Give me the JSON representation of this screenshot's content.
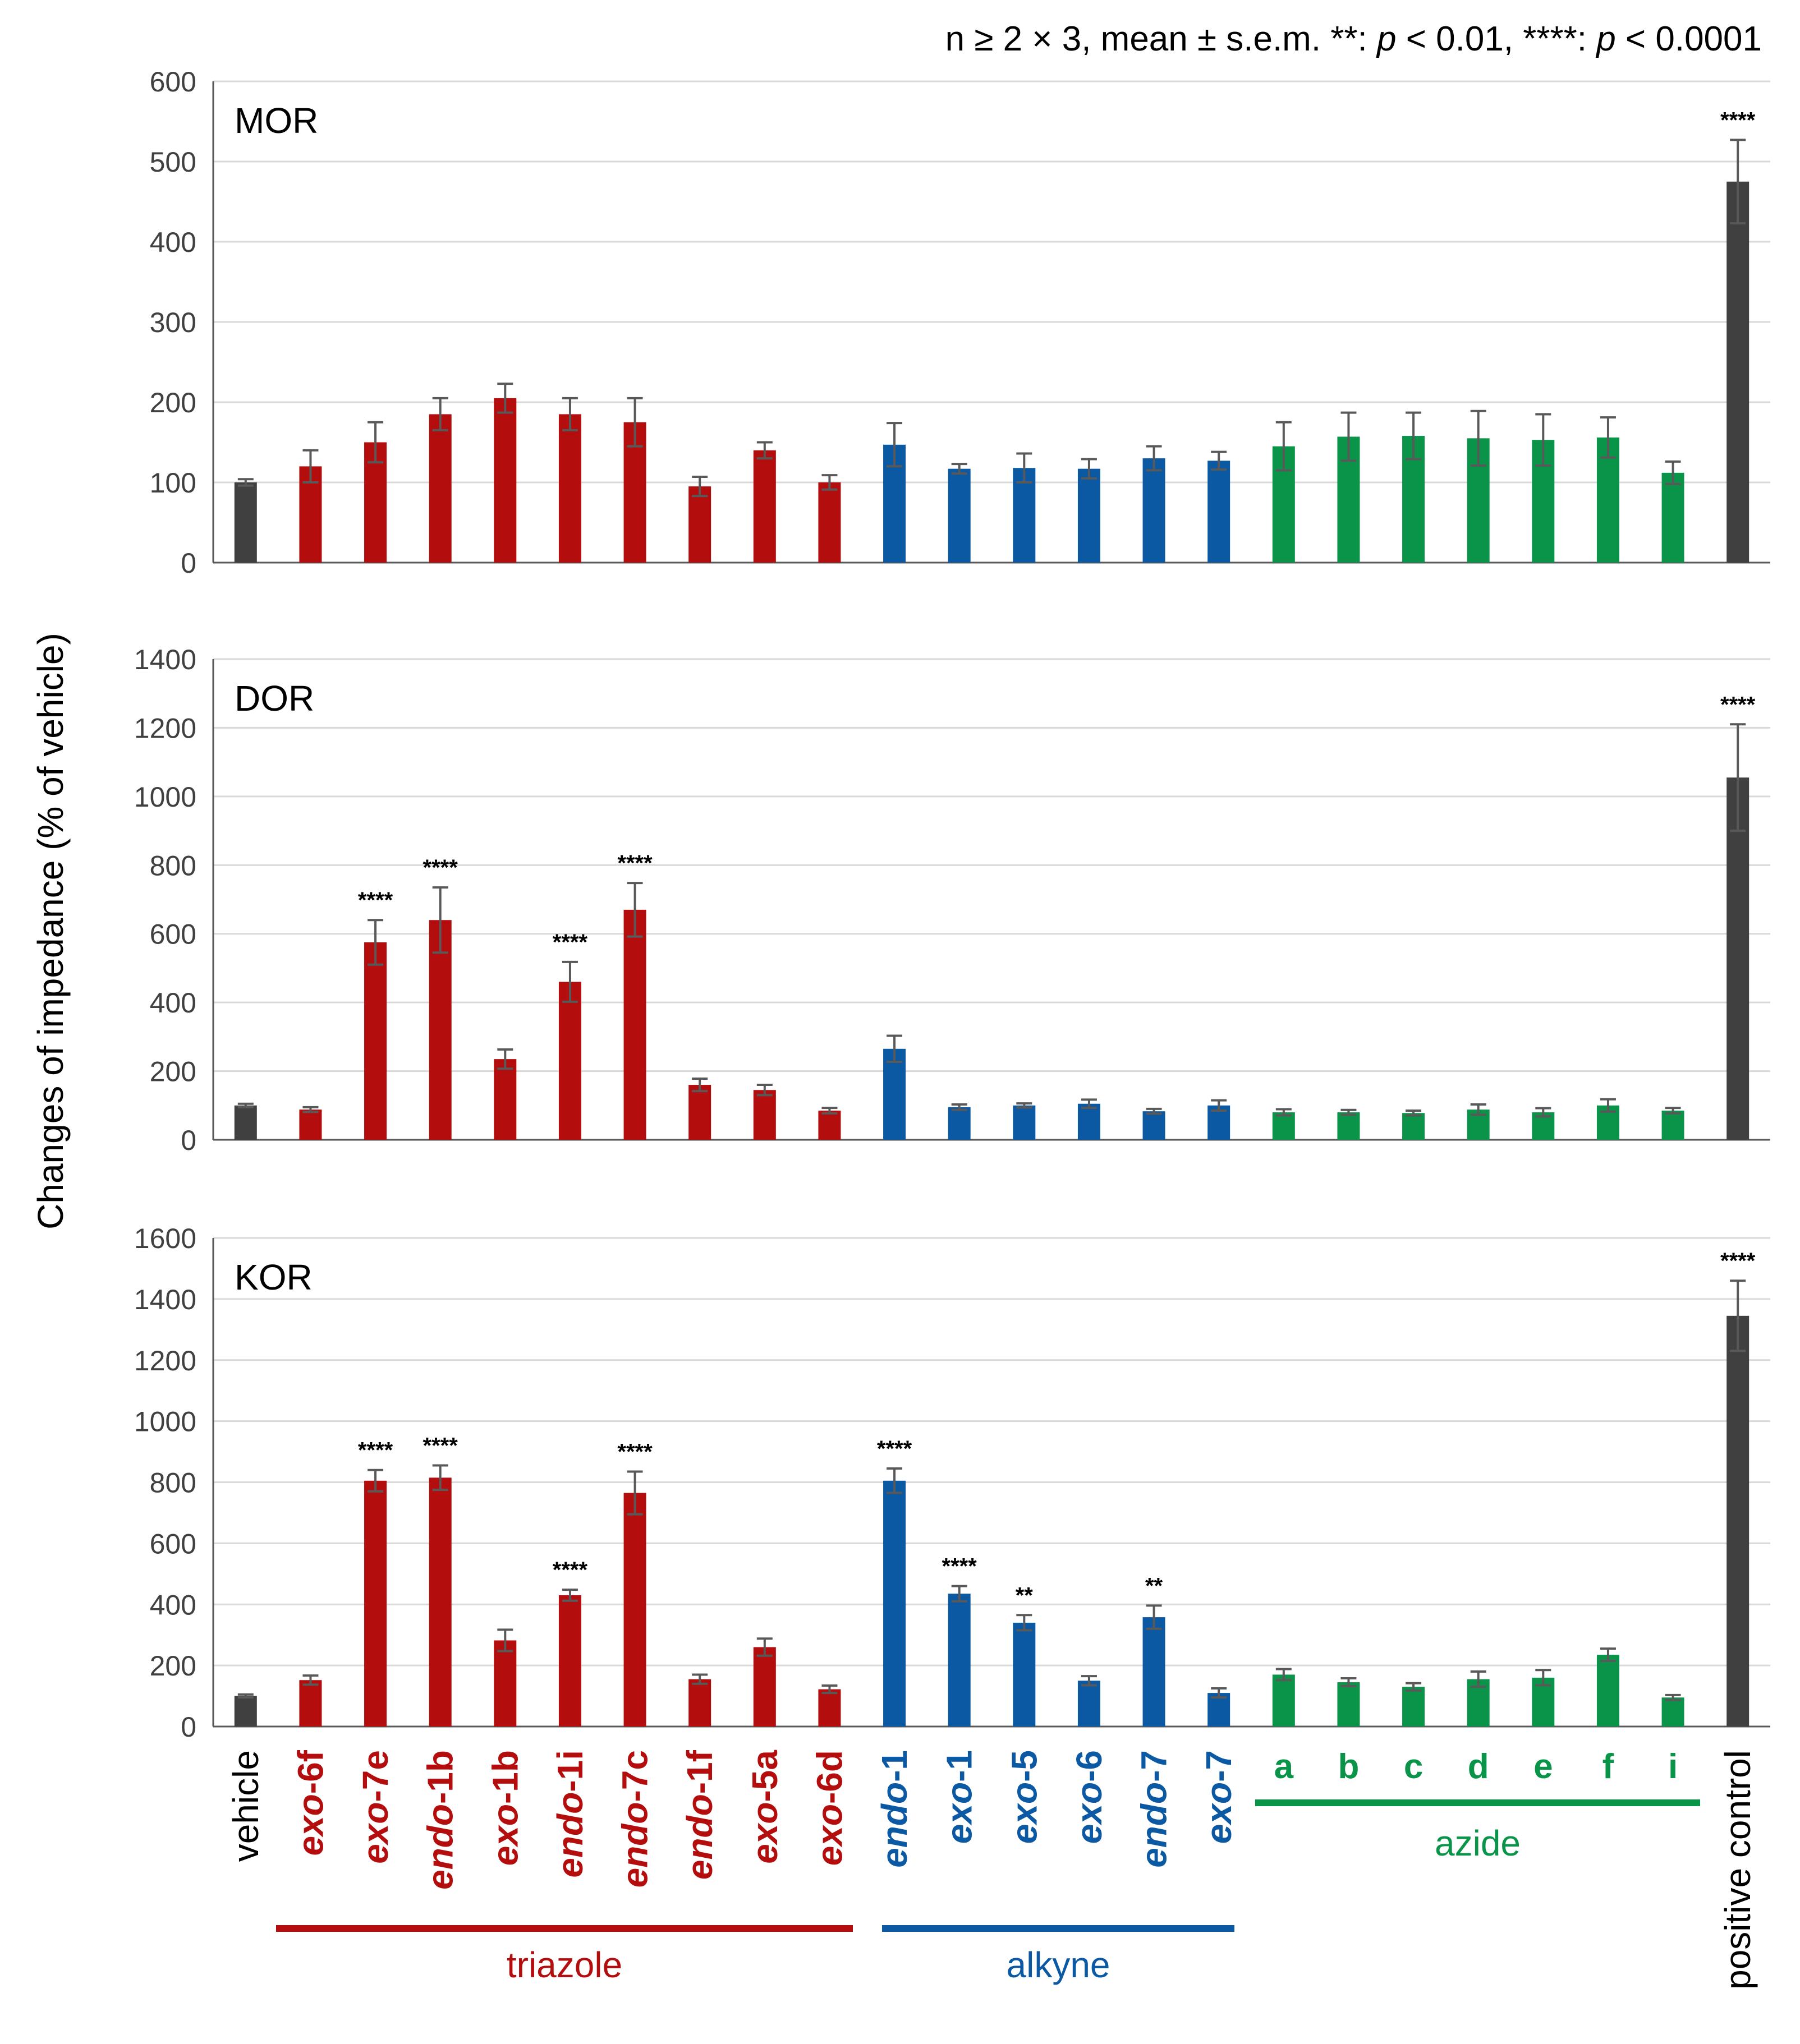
{
  "header_note": {
    "prefix": "n ≥ 2 × 3, mean ± s.e.m. **: ",
    "p1": "p",
    "mid": " < 0.01, ****: ",
    "p2": "p",
    "suffix": " < 0.0001"
  },
  "y_axis_label": "Changes of impedance (% of vehicle)",
  "colors": {
    "vehicle": "#404040",
    "triazole": "#b30d0d",
    "alkyne": "#0b58a3",
    "azide": "#0a9449",
    "positive": "#404040",
    "error_bar": "#595959",
    "grid": "#d9d9d9",
    "axis": "#595959",
    "text": "#000000",
    "tick_text": "#404040"
  },
  "categories": [
    {
      "group": "vehicle",
      "prefix": "vehicle",
      "suffix": ""
    },
    {
      "group": "triazole",
      "prefix": "exo",
      "suffix": "-6f"
    },
    {
      "group": "triazole",
      "prefix": "exo",
      "suffix": "-7e"
    },
    {
      "group": "triazole",
      "prefix": "endo",
      "suffix": "-1b"
    },
    {
      "group": "triazole",
      "prefix": "exo",
      "suffix": "-1b"
    },
    {
      "group": "triazole",
      "prefix": "endo",
      "suffix": "-1i"
    },
    {
      "group": "triazole",
      "prefix": "endo",
      "suffix": "-7c"
    },
    {
      "group": "triazole",
      "prefix": "endo",
      "suffix": "-1f"
    },
    {
      "group": "triazole",
      "prefix": "exo",
      "suffix": "-5a"
    },
    {
      "group": "triazole",
      "prefix": "exo",
      "suffix": "-6d"
    },
    {
      "group": "alkyne",
      "prefix": "endo",
      "suffix": "-1"
    },
    {
      "group": "alkyne",
      "prefix": "exo",
      "suffix": "-1"
    },
    {
      "group": "alkyne",
      "prefix": "exo",
      "suffix": "-5"
    },
    {
      "group": "alkyne",
      "prefix": "exo",
      "suffix": "-6"
    },
    {
      "group": "alkyne",
      "prefix": "endo",
      "suffix": "-7"
    },
    {
      "group": "alkyne",
      "prefix": "exo",
      "suffix": "-7"
    },
    {
      "group": "azide",
      "prefix": "a",
      "suffix": ""
    },
    {
      "group": "azide",
      "prefix": "b",
      "suffix": ""
    },
    {
      "group": "azide",
      "prefix": "c",
      "suffix": ""
    },
    {
      "group": "azide",
      "prefix": "d",
      "suffix": ""
    },
    {
      "group": "azide",
      "prefix": "e",
      "suffix": ""
    },
    {
      "group": "azide",
      "prefix": "f",
      "suffix": ""
    },
    {
      "group": "azide",
      "prefix": "i",
      "suffix": ""
    },
    {
      "group": "positive",
      "prefix": "positive control",
      "suffix": ""
    }
  ],
  "group_labels": [
    {
      "group": "triazole",
      "label": "triazole"
    },
    {
      "group": "alkyne",
      "label": "alkyne"
    },
    {
      "group": "azide",
      "label": "azide"
    }
  ],
  "chart_data": [
    {
      "type": "bar",
      "title": "MOR",
      "ylabel": "Changes of impedance (% of vehicle)",
      "ylim": [
        0,
        600
      ],
      "yticks": [
        0,
        100,
        200,
        300,
        400,
        500,
        600
      ],
      "grid": true,
      "values": [
        100,
        120,
        150,
        185,
        205,
        185,
        175,
        95,
        140,
        100,
        147,
        117,
        118,
        117,
        130,
        127,
        145,
        157,
        158,
        155,
        153,
        156,
        112,
        475
      ],
      "errors": [
        4,
        20,
        25,
        20,
        18,
        20,
        30,
        12,
        10,
        9,
        27,
        6,
        18,
        12,
        15,
        11,
        30,
        30,
        29,
        34,
        32,
        25,
        14,
        52
      ],
      "significance": [
        "",
        "",
        "",
        "",
        "",
        "",
        "",
        "",
        "",
        "",
        "",
        "",
        "",
        "",
        "",
        "",
        "",
        "",
        "",
        "",
        "",
        "",
        "",
        "****"
      ]
    },
    {
      "type": "bar",
      "title": "DOR",
      "ylabel": "Changes of impedance (% of vehicle)",
      "ylim": [
        0,
        1400
      ],
      "yticks": [
        0,
        200,
        400,
        600,
        800,
        1000,
        1200,
        1400
      ],
      "grid": true,
      "values": [
        100,
        88,
        575,
        640,
        235,
        460,
        670,
        160,
        145,
        85,
        265,
        95,
        100,
        105,
        83,
        100,
        80,
        80,
        78,
        88,
        80,
        100,
        85,
        1055
      ],
      "errors": [
        5,
        7,
        65,
        95,
        28,
        58,
        78,
        18,
        15,
        8,
        38,
        8,
        6,
        12,
        7,
        15,
        9,
        7,
        7,
        15,
        12,
        18,
        8,
        155
      ],
      "significance": [
        "",
        "",
        "****",
        "****",
        "",
        "****",
        "****",
        "",
        "",
        "",
        "",
        "",
        "",
        "",
        "",
        "",
        "",
        "",
        "",
        "",
        "",
        "",
        "",
        "****"
      ]
    },
    {
      "type": "bar",
      "title": "KOR",
      "ylabel": "Changes of impedance (% of vehicle)",
      "ylim": [
        0,
        1600
      ],
      "yticks": [
        0,
        200,
        400,
        600,
        800,
        1000,
        1200,
        1400,
        1600
      ],
      "grid": true,
      "values": [
        100,
        152,
        805,
        815,
        282,
        430,
        765,
        155,
        260,
        122,
        805,
        435,
        340,
        150,
        358,
        110,
        170,
        145,
        130,
        155,
        160,
        235,
        95,
        1345
      ],
      "errors": [
        5,
        15,
        35,
        40,
        35,
        18,
        70,
        15,
        28,
        12,
        40,
        25,
        25,
        15,
        38,
        15,
        18,
        13,
        12,
        25,
        25,
        20,
        8,
        115
      ],
      "significance": [
        "",
        "",
        "****",
        "****",
        "",
        "****",
        "****",
        "",
        "",
        "",
        "****",
        "****",
        "**",
        "",
        "**",
        "",
        "",
        "",
        "",
        "",
        "",
        "",
        "",
        "****"
      ]
    }
  ]
}
